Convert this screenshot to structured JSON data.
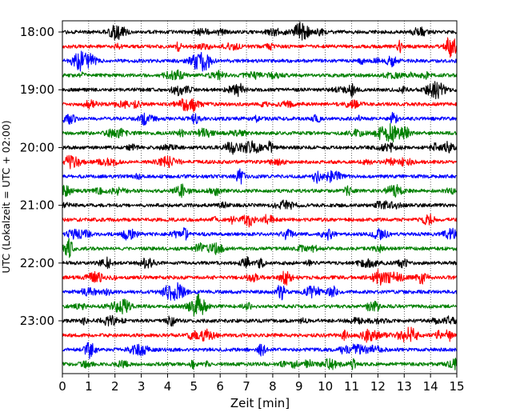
{
  "chart_data": {
    "type": "line",
    "title": "",
    "xlabel": "Zeit  [min]",
    "ylabel": "UTC (Lokalzeit = UTC + 02:00)",
    "xlim": [
      0,
      15
    ],
    "x_ticks": [
      "0",
      "1",
      "2",
      "3",
      "4",
      "5",
      "6",
      "7",
      "8",
      "9",
      "10",
      "11",
      "12",
      "13",
      "14",
      "15"
    ],
    "y_ticks": [
      {
        "label": "18:00",
        "row": 0
      },
      {
        "label": "19:00",
        "row": 4
      },
      {
        "label": "20:00",
        "row": 8
      },
      {
        "label": "21:00",
        "row": 12
      },
      {
        "label": "22:00",
        "row": 16
      },
      {
        "label": "23:00",
        "row": 20
      }
    ],
    "grid": "vertical dotted at each minute",
    "trace_interval_minutes": 15,
    "trace_colors": [
      "#000000",
      "#ff0000",
      "#0000ff",
      "#008000"
    ],
    "series": [
      {
        "start": "18:00"
      },
      {
        "start": "18:15"
      },
      {
        "start": "18:30"
      },
      {
        "start": "18:45"
      },
      {
        "start": "19:00"
      },
      {
        "start": "19:15"
      },
      {
        "start": "19:30"
      },
      {
        "start": "19:45"
      },
      {
        "start": "20:00"
      },
      {
        "start": "20:15"
      },
      {
        "start": "20:30"
      },
      {
        "start": "20:45"
      },
      {
        "start": "21:00"
      },
      {
        "start": "21:15"
      },
      {
        "start": "21:30"
      },
      {
        "start": "21:45"
      },
      {
        "start": "22:00"
      },
      {
        "start": "22:15"
      },
      {
        "start": "22:30"
      },
      {
        "start": "22:45"
      },
      {
        "start": "23:00"
      },
      {
        "start": "23:15"
      },
      {
        "start": "23:30"
      },
      {
        "start": "23:45"
      }
    ]
  }
}
